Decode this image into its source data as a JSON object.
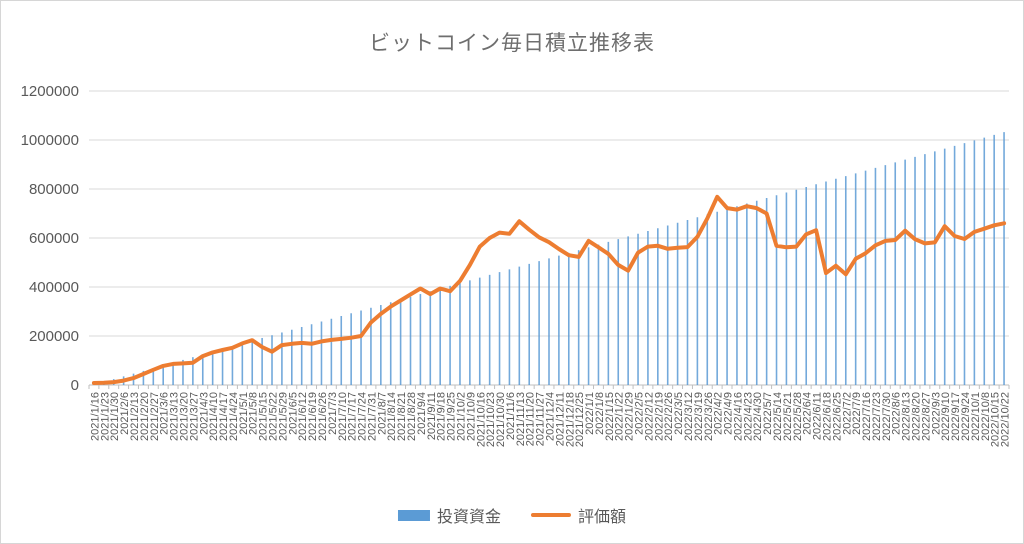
{
  "chart_data": {
    "type": "combo",
    "title": "ビットコイン毎日積立推移表",
    "legend_position": "bottom",
    "grid": true,
    "x_label_rotation_deg": 90,
    "ylim": [
      0,
      1200000
    ],
    "ytick_interval": 200000,
    "yticks": [
      0,
      200000,
      400000,
      600000,
      800000,
      1000000,
      1200000
    ],
    "colors": {
      "bar": "#5B9BD5",
      "line": "#ED7D31",
      "grid": "#d9d9d9",
      "axis": "#bfbfbf",
      "text": "#595959"
    },
    "categories": [
      "2021/1/16",
      "2021/1/23",
      "2021/1/30",
      "2021/2/6",
      "2021/2/13",
      "2021/2/20",
      "2021/2/27",
      "2021/3/6",
      "2021/3/13",
      "2021/3/20",
      "2021/3/27",
      "2021/4/3",
      "2021/4/10",
      "2021/4/17",
      "2021/4/24",
      "2021/5/1",
      "2021/5/8",
      "2021/5/15",
      "2021/5/22",
      "2021/5/29",
      "2021/6/5",
      "2021/6/12",
      "2021/6/19",
      "2021/6/26",
      "2021/7/3",
      "2021/7/10",
      "2021/7/17",
      "2021/7/24",
      "2021/7/31",
      "2021/8/7",
      "2021/8/14",
      "2021/8/21",
      "2021/8/28",
      "2021/9/4",
      "2021/9/11",
      "2021/9/18",
      "2021/9/25",
      "2021/10/2",
      "2021/10/9",
      "2021/10/16",
      "2021/10/23",
      "2021/10/30",
      "2021/11/6",
      "2021/11/13",
      "2021/11/20",
      "2021/11/27",
      "2021/12/4",
      "2021/12/11",
      "2021/12/18",
      "2021/12/25",
      "2022/1/1",
      "2022/1/8",
      "2022/1/15",
      "2022/1/22",
      "2022/1/29",
      "2022/2/5",
      "2022/2/12",
      "2022/2/19",
      "2022/2/26",
      "2022/3/5",
      "2022/3/12",
      "2022/3/19",
      "2022/3/26",
      "2022/4/2",
      "2022/4/9",
      "2022/4/16",
      "2022/4/23",
      "2022/4/30",
      "2022/5/7",
      "2022/5/14",
      "2022/5/21",
      "2022/5/28",
      "2022/6/4",
      "2022/6/11",
      "2022/6/18",
      "2022/6/25",
      "2022/7/2",
      "2022/7/9",
      "2022/7/16",
      "2022/7/23",
      "2022/7/30",
      "2022/8/6",
      "2022/8/13",
      "2022/8/20",
      "2022/8/27",
      "2022/9/3",
      "2022/9/10",
      "2022/9/17",
      "2022/9/24",
      "2022/10/1",
      "2022/10/8",
      "2022/10/15",
      "2022/10/22"
    ],
    "series": [
      {
        "name": "投資資金",
        "type": "bar",
        "color": "#5B9BD5",
        "values": [
          1600,
          12800,
          24000,
          35200,
          46400,
          57600,
          68800,
          80000,
          91200,
          102400,
          113600,
          124800,
          136000,
          147200,
          158400,
          169600,
          180800,
          192000,
          203200,
          214400,
          225600,
          236800,
          248000,
          259200,
          270400,
          281600,
          292800,
          304000,
          315200,
          326400,
          337600,
          348800,
          360000,
          371200,
          382400,
          393600,
          404800,
          416000,
          427200,
          438400,
          449600,
          460800,
          472000,
          483200,
          494400,
          505600,
          516800,
          528000,
          539200,
          550400,
          561600,
          572800,
          584000,
          595200,
          606400,
          617600,
          628800,
          640000,
          651200,
          662400,
          673600,
          684800,
          696000,
          707200,
          718400,
          729600,
          740800,
          752000,
          763200,
          774400,
          785600,
          796800,
          808000,
          819200,
          830400,
          841600,
          852800,
          864000,
          875200,
          886400,
          897600,
          908800,
          920000,
          931200,
          942400,
          953600,
          964800,
          976000,
          987200,
          998400,
          1009600,
          1020800,
          1032000
        ]
      },
      {
        "name": "評価額",
        "type": "line",
        "color": "#ED7D31",
        "values": [
          8000,
          9000,
          12000,
          18000,
          28000,
          45000,
          62000,
          78000,
          86000,
          88000,
          91000,
          118000,
          133000,
          143000,
          152000,
          170000,
          183000,
          155000,
          136000,
          163000,
          168000,
          172000,
          168000,
          178000,
          184000,
          188000,
          193000,
          200000,
          255000,
          290000,
          320000,
          345000,
          370000,
          394000,
          371000,
          394000,
          383000,
          425000,
          490000,
          565000,
          600000,
          622000,
          617000,
          668000,
          634000,
          603000,
          583000,
          555000,
          530000,
          523000,
          588000,
          562000,
          535000,
          490000,
          467000,
          540000,
          565000,
          568000,
          556000,
          560000,
          563000,
          605000,
          680000,
          768000,
          722000,
          716000,
          730000,
          722000,
          700000,
          568000,
          562000,
          565000,
          615000,
          632000,
          457000,
          487000,
          452000,
          515000,
          538000,
          570000,
          588000,
          592000,
          630000,
          595000,
          578000,
          582000,
          648000,
          608000,
          596000,
          625000,
          638000,
          652000,
          660000
        ]
      }
    ]
  }
}
